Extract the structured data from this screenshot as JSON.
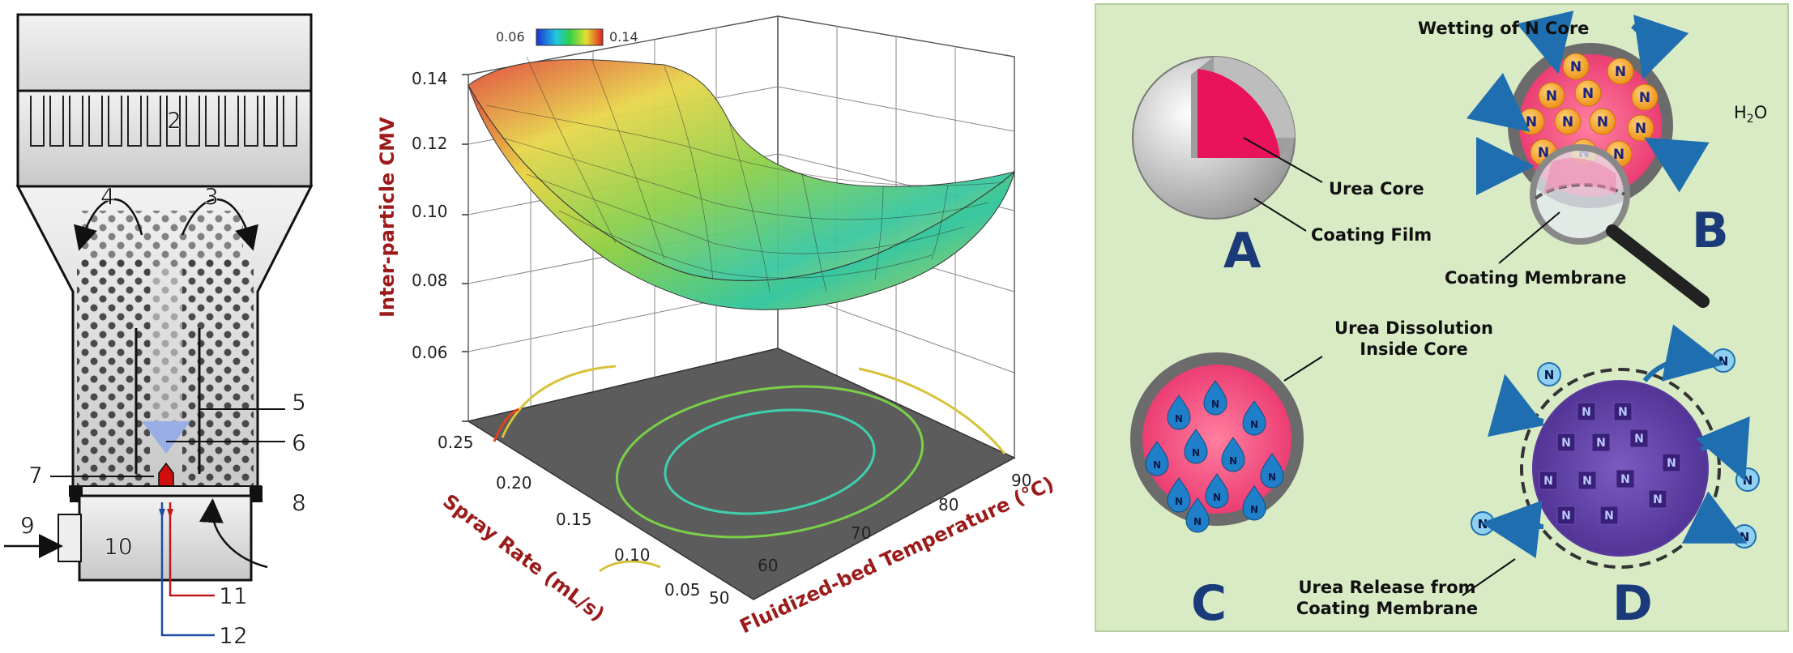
{
  "left_panel": {
    "labels": {
      "n2": "2",
      "n3": "3",
      "n4": "4",
      "n5": "5",
      "n6": "6",
      "n7": "7",
      "n8": "8",
      "n9": "9",
      "n10": "10",
      "n11": "11",
      "n12": "12"
    }
  },
  "middle_panel": {
    "colorbar": {
      "min_label": "0.06",
      "max_label": "0.14"
    },
    "z_axis": {
      "label": "Inter-particle CMV",
      "ticks": [
        "0.14",
        "0.12",
        "0.10",
        "0.08",
        "0.06"
      ]
    },
    "spray_axis": {
      "label": "Spray Rate (mL/s)",
      "ticks": [
        "0.25",
        "0.20",
        "0.15",
        "0.10",
        "0.05"
      ]
    },
    "temp_axis": {
      "label": "Fluidized-bed Temperature (°C)",
      "ticks": [
        "50",
        "60",
        "70",
        "80",
        "90"
      ]
    },
    "colors": {
      "label": "#9b1b1b",
      "contour_floor": "#5a5a5a"
    }
  },
  "right_panel": {
    "background": "#d8ebc5",
    "panel_A": {
      "letter": "A",
      "urea_core": "Urea Core",
      "coating_film": "Coating Film"
    },
    "panel_B": {
      "letter": "B",
      "wetting": "Wetting of N Core",
      "h2o": "H",
      "h2o_sub": "2",
      "h2o_o": "O",
      "coating_membrane": "Coating Membrane",
      "n_glyph": "N"
    },
    "panel_C": {
      "letter": "C",
      "dissolution_line1": "Urea Dissolution",
      "dissolution_line2": "Inside Core",
      "n_glyph": "N"
    },
    "panel_D": {
      "letter": "D",
      "release_line1": "Urea Release from",
      "release_line2": "Coating Membrane",
      "n_glyph": "N"
    }
  }
}
